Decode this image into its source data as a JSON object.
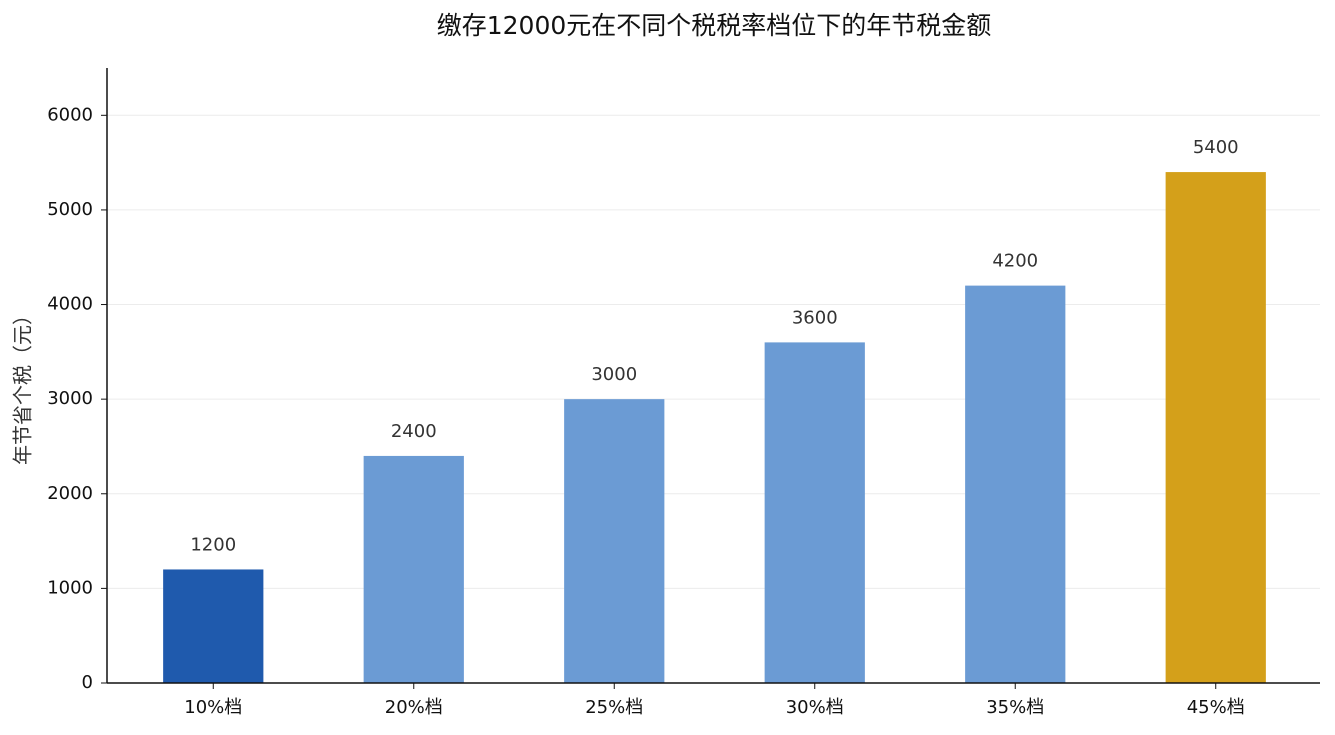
{
  "chart_data": {
    "type": "bar",
    "title": "缴存12000元在不同个税税率档位下的年节税金额",
    "y_label": "年节省个税（元）",
    "categories": [
      "10%档",
      "20%档",
      "25%档",
      "30%档",
      "35%档",
      "45%档"
    ],
    "values": [
      1200,
      2400,
      3000,
      3600,
      4200,
      5400
    ],
    "colors": [
      "#1f5aad",
      "#6b9bd4",
      "#6b9bd4",
      "#6b9bd4",
      "#6b9bd4",
      "#d4a01a"
    ],
    "ylim": [
      0,
      6500
    ],
    "yticks": [
      0,
      1000,
      2000,
      3000,
      4000,
      5000,
      6000
    ],
    "grid": true
  }
}
